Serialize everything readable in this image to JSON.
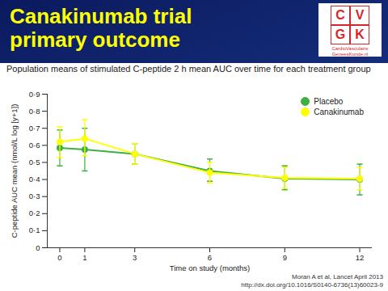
{
  "chart_data": {
    "type": "line",
    "title": "Canakinumab trial primary outcome",
    "subtitle": "Population means of stimulated C-peptide 2 h mean AUC over time for each treatment group",
    "x_label": "Time on study (months)",
    "y_label": "C-peptide AUC mean (nmol/L log [y+1])",
    "x": [
      0,
      1,
      3,
      6,
      9,
      12
    ],
    "series": [
      {
        "name": "Placebo",
        "color": "#3cb043",
        "marker": "circle",
        "line_style": "solid",
        "values": [
          0.585,
          0.575,
          0.55,
          0.45,
          0.405,
          0.4
        ],
        "error_low": [
          0.48,
          0.45,
          0.49,
          0.39,
          0.34,
          0.31
        ],
        "error_high": [
          0.69,
          0.7,
          0.61,
          0.52,
          0.48,
          0.49
        ]
      },
      {
        "name": "Canakinumab",
        "color": "#ffff00",
        "marker": "circle",
        "line_style": "solid",
        "values": [
          0.62,
          0.64,
          0.55,
          0.44,
          0.41,
          0.405
        ],
        "error_low": [
          0.53,
          0.54,
          0.49,
          0.38,
          0.35,
          0.34
        ],
        "error_high": [
          0.71,
          0.75,
          0.61,
          0.5,
          0.47,
          0.47
        ]
      }
    ],
    "xlim": [
      -0.5,
      12.5
    ],
    "xticks": [
      0,
      1,
      3,
      6,
      9,
      12
    ],
    "ylim": [
      0,
      0.9
    ],
    "yticks": [
      0,
      {
        "value": 0.1,
        "label": "0·1"
      },
      {
        "value": 0.2,
        "label": "0·2"
      },
      {
        "value": 0.3,
        "label": "0·3"
      },
      {
        "value": 0.4,
        "label": "0·4"
      },
      {
        "value": 0.5,
        "label": "0·5"
      },
      {
        "value": 0.6,
        "label": "0·6"
      },
      {
        "value": 0.7,
        "label": "0·7"
      },
      {
        "value": 0.8,
        "label": "0·8"
      },
      {
        "value": 0.9,
        "label": "0·9"
      }
    ],
    "grid": false,
    "legend": "top-right",
    "annotations": [
      "Moran A et al, Lancet April 2013",
      "http://dx.doi.org/10.1016/S0140-6736(13)60023-9"
    ],
    "logo": {
      "letters": [
        "C",
        "V",
        "G",
        "K"
      ],
      "text": "CardioVasculaire GeneesKunde.nl"
    }
  }
}
